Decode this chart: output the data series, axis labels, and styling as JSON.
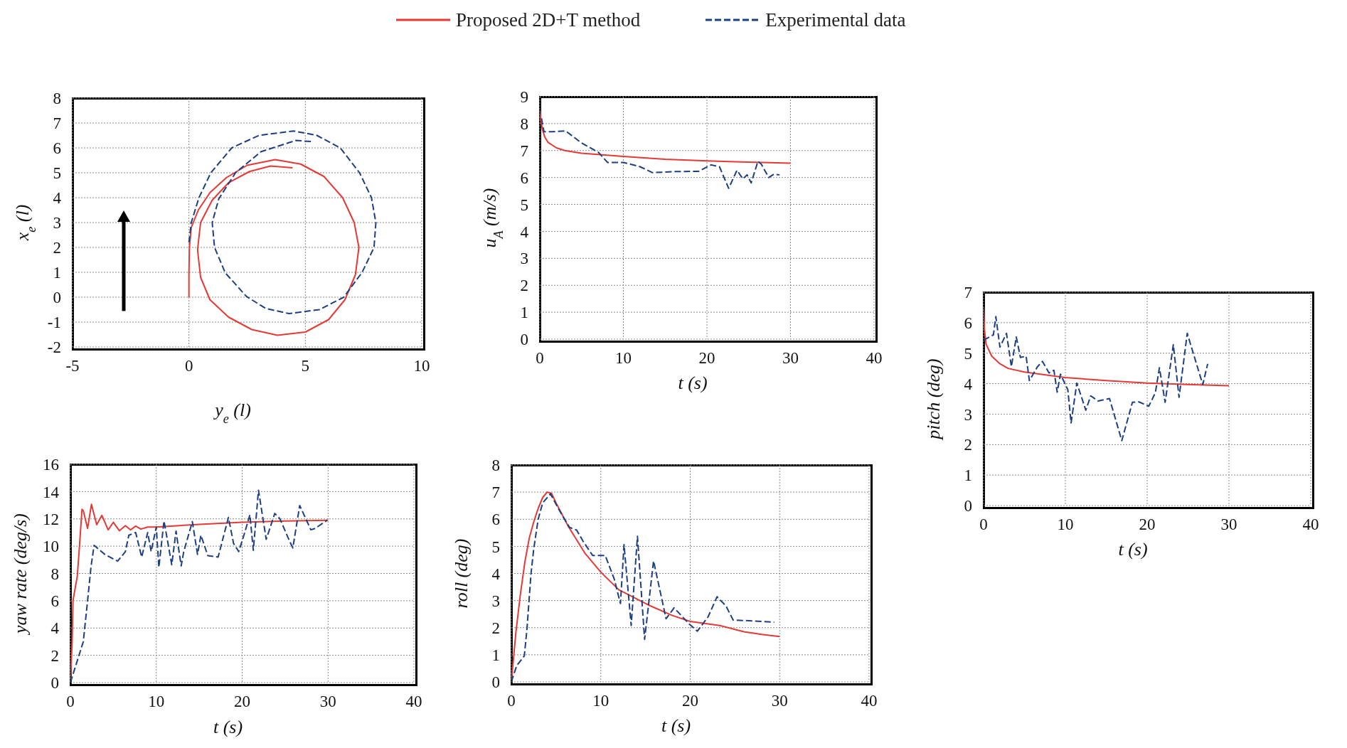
{
  "chart_data": [
    {
      "type": "line",
      "xlabel": "y$_{e}$ (l)",
      "ylabel": "x$_{e}$ (l)",
      "xlim": [
        -5,
        10
      ],
      "xticks": [
        -5,
        0,
        5,
        10
      ],
      "ylim": [
        -2,
        8
      ],
      "yticks": [
        -2,
        -1,
        0,
        1,
        2,
        3,
        4,
        5,
        6,
        7,
        8
      ],
      "grid": true,
      "legend": "top",
      "series": [
        {
          "name": "Proposed 2D+T method",
          "color": "#e53935",
          "line_style": "solid",
          "x": [
            0,
            0,
            0.02,
            0.1,
            0.4,
            0.9,
            1.6,
            2.5,
            3.7,
            4.8,
            5.8,
            6.6,
            7.1,
            7.3,
            7.15,
            6.7,
            6,
            5,
            3.8,
            2.7,
            1.7,
            0.9,
            0.5,
            0.37,
            0.5,
            1,
            1.7,
            2.6,
            3.5,
            4.45
          ],
          "values": [
            0,
            1,
            2,
            2.8,
            3.5,
            4.2,
            4.8,
            5.3,
            5.53,
            5.35,
            4.85,
            4,
            3,
            2,
            0.9,
            -0.1,
            -0.9,
            -1.4,
            -1.53,
            -1.3,
            -0.8,
            -0.1,
            0.8,
            1.9,
            3,
            3.9,
            4.6,
            5.05,
            5.27,
            5.2
          ]
        },
        {
          "name": "Experimental data",
          "color": "#1c3f82",
          "line_style": "dashed",
          "x": [
            0,
            0.1,
            0.43,
            0.94,
            1.84,
            3,
            4.5,
            5.5,
            6.5,
            7.33,
            7.84,
            8.03,
            7.95,
            7.44,
            6.65,
            5.6,
            4.3,
            3.3,
            2.47,
            1.56,
            1.1,
            1,
            1.28,
            2,
            3.1,
            4.6,
            5.3
          ],
          "values": [
            2.2,
            3,
            4,
            5,
            6,
            6.5,
            6.68,
            6.5,
            6,
            5,
            4,
            3,
            2,
            1,
            0,
            -0.5,
            -0.66,
            -0.45,
            0.03,
            0.98,
            2,
            3,
            3.95,
            5,
            5.85,
            6.3,
            6.25
          ]
        }
      ]
    },
    {
      "type": "line",
      "xlabel": "t (s)",
      "ylabel": "u$_{A}$ (m/s)",
      "xlim": [
        0,
        40
      ],
      "xticks": [
        0,
        10,
        20,
        30,
        40
      ],
      "ylim": [
        0,
        9
      ],
      "yticks": [
        0,
        1,
        2,
        3,
        4,
        5,
        6,
        7,
        8,
        9
      ],
      "grid": true,
      "series": [
        {
          "color": "#e53935",
          "line_style": "solid",
          "x": [
            0,
            0.1,
            0.3,
            0.6,
            1,
            2,
            3,
            5,
            10,
            15,
            20,
            25,
            30
          ],
          "values": [
            8.5,
            8.2,
            7.8,
            7.5,
            7.3,
            7.1,
            7,
            6.9,
            6.78,
            6.68,
            6.62,
            6.57,
            6.53
          ]
        },
        {
          "color": "#1c3f82",
          "line_style": "dashed",
          "x": [
            0.2,
            0.5,
            1.5,
            3.1,
            5,
            7,
            8.1,
            10,
            12,
            13.5,
            16,
            19,
            20.5,
            21.5,
            22.6,
            23.6,
            24.3,
            24.8,
            25.3,
            26.1,
            26.5,
            27.4,
            28,
            28.7
          ],
          "values": [
            8.2,
            7.7,
            7.7,
            7.73,
            7.28,
            6.94,
            6.56,
            6.56,
            6.4,
            6.18,
            6.22,
            6.23,
            6.47,
            6.4,
            5.6,
            6.27,
            5.95,
            6.1,
            5.8,
            6.6,
            6.5,
            6,
            6.12,
            6.1
          ]
        }
      ]
    },
    {
      "type": "line",
      "xlabel": "t (s)",
      "ylabel": "pitch (deg)",
      "xlim": [
        0,
        40
      ],
      "xticks": [
        0,
        10,
        20,
        30,
        40
      ],
      "ylim": [
        0,
        7
      ],
      "yticks": [
        0,
        1,
        2,
        3,
        4,
        5,
        6,
        7
      ],
      "grid": true,
      "series": [
        {
          "color": "#e53935",
          "line_style": "solid",
          "x": [
            0,
            0.1,
            0.3,
            1,
            2,
            3,
            5,
            10,
            15,
            20,
            25,
            30
          ],
          "values": [
            6.5,
            5.8,
            5.3,
            4.9,
            4.65,
            4.5,
            4.38,
            4.2,
            4.1,
            4.02,
            3.97,
            3.93
          ]
        },
        {
          "color": "#1c3f82",
          "line_style": "dashed",
          "x": [
            0,
            1.2,
            1.5,
            2,
            2.8,
            3.4,
            4,
            4.5,
            5.2,
            5.6,
            6.6,
            7.2,
            8,
            8.6,
            9,
            9.4,
            10.3,
            10.7,
            11.4,
            12.5,
            13.1,
            14,
            15.4,
            16.9,
            18.2,
            19,
            20.2,
            21,
            21.5,
            22.2,
            23.2,
            23.9,
            24.9,
            26.8,
            27.4
          ],
          "values": [
            5.43,
            5.6,
            6.2,
            5.2,
            5.65,
            4.56,
            5.53,
            4.86,
            4.9,
            4.1,
            4.56,
            4.73,
            4.35,
            4.44,
            3.72,
            4.31,
            3.8,
            2.71,
            4.02,
            3.13,
            3.6,
            3.43,
            3.51,
            2.13,
            3.39,
            3.4,
            3.26,
            3.7,
            4.52,
            3.39,
            5.28,
            3.55,
            5.65,
            3.97,
            4.65
          ]
        }
      ]
    },
    {
      "type": "line",
      "xlabel": "t (s)",
      "ylabel": "yaw rate (deg/s)",
      "xlim": [
        0,
        40
      ],
      "xticks": [
        0,
        10,
        20,
        30,
        40
      ],
      "ylim": [
        0,
        16
      ],
      "yticks": [
        0,
        2,
        4,
        6,
        8,
        10,
        12,
        14,
        16
      ],
      "grid": true,
      "series": [
        {
          "color": "#e53935",
          "line_style": "solid",
          "x": [
            0,
            0.2,
            0.3,
            0.8,
            1,
            1.35,
            1.5,
            2,
            2.45,
            3.06,
            3.66,
            4.4,
            5,
            5.7,
            6.4,
            7,
            7.6,
            8.2,
            9,
            10,
            15,
            20,
            25,
            30
          ],
          "values": [
            0,
            3,
            6,
            7.8,
            9.5,
            12.7,
            12.6,
            11.3,
            13.07,
            11.57,
            12.26,
            11.19,
            11.75,
            11.13,
            11.5,
            11.19,
            11.47,
            11.25,
            11.4,
            11.4,
            11.6,
            11.75,
            11.85,
            11.9
          ]
        },
        {
          "color": "#1c3f82",
          "line_style": "dashed",
          "x": [
            0,
            0.5,
            1.5,
            2,
            2.4,
            2.76,
            4,
            5.5,
            6.4,
            6.8,
            7.6,
            8.3,
            9,
            9.4,
            10,
            10.3,
            10.9,
            11.8,
            12.3,
            12.9,
            13.2,
            14.2,
            14.8,
            15.2,
            16,
            17.2,
            18.4,
            19,
            19.6,
            20.3,
            20.9,
            21.3,
            21.9,
            22.8,
            23.8,
            24.4,
            25.5,
            25.9,
            26.7,
            28,
            28.5,
            29.9
          ],
          "values": [
            0,
            1,
            3,
            6,
            8.5,
            10.06,
            9.4,
            8.9,
            9.6,
            10.8,
            11,
            9.2,
            11,
            9.6,
            11.4,
            8.45,
            11.85,
            8.64,
            11.1,
            8.55,
            9.6,
            11.8,
            9.4,
            10.8,
            9.3,
            9.2,
            12.1,
            10.2,
            9.6,
            11,
            12.3,
            9.7,
            14.1,
            10.5,
            12.4,
            12,
            10.4,
            9.87,
            12.98,
            11.2,
            11.3,
            11.9
          ]
        }
      ]
    },
    {
      "type": "line",
      "xlabel": "t (s)",
      "ylabel": "roll (deg)",
      "xlim": [
        0,
        40
      ],
      "xticks": [
        0,
        10,
        20,
        30,
        40
      ],
      "ylim": [
        0,
        8
      ],
      "yticks": [
        0,
        1,
        2,
        3,
        4,
        5,
        6,
        7,
        8
      ],
      "grid": true,
      "series": [
        {
          "color": "#e53935",
          "line_style": "solid",
          "x": [
            0,
            0.5,
            1,
            1.5,
            2,
            2.5,
            3,
            3.5,
            4,
            4.5,
            5,
            6.4,
            8.2,
            10,
            12,
            15.3,
            18,
            20,
            23.3,
            26,
            28,
            30
          ],
          "values": [
            0,
            1.8,
            3.2,
            4.4,
            5.3,
            5.9,
            6.4,
            6.8,
            7,
            6.95,
            6.6,
            5.72,
            4.76,
            4.05,
            3.4,
            2.84,
            2.45,
            2.23,
            2.08,
            1.85,
            1.75,
            1.67
          ]
        },
        {
          "color": "#1c3f82",
          "line_style": "dashed",
          "x": [
            0,
            0.3,
            0.6,
            1.45,
            1.75,
            2.2,
            2.5,
            3,
            3.5,
            4.37,
            5.45,
            6.5,
            7.3,
            8,
            9.1,
            10.5,
            11.5,
            12.2,
            12.6,
            13.4,
            14.1,
            14.9,
            15.9,
            17.3,
            18.2,
            19.9,
            20.8,
            22,
            23,
            24,
            24.8,
            27,
            29.4
          ],
          "values": [
            0,
            0.3,
            0.6,
            0.96,
            1.97,
            4,
            4.9,
            6,
            6.6,
            6.94,
            6.28,
            5.7,
            5.6,
            5.2,
            4.66,
            4.66,
            3.8,
            2.89,
            5.06,
            2.08,
            5.37,
            1.57,
            4.46,
            2.33,
            2.73,
            2.13,
            1.87,
            2.4,
            3.14,
            2.8,
            2.28,
            2.25,
            2.2
          ]
        }
      ]
    }
  ]
}
